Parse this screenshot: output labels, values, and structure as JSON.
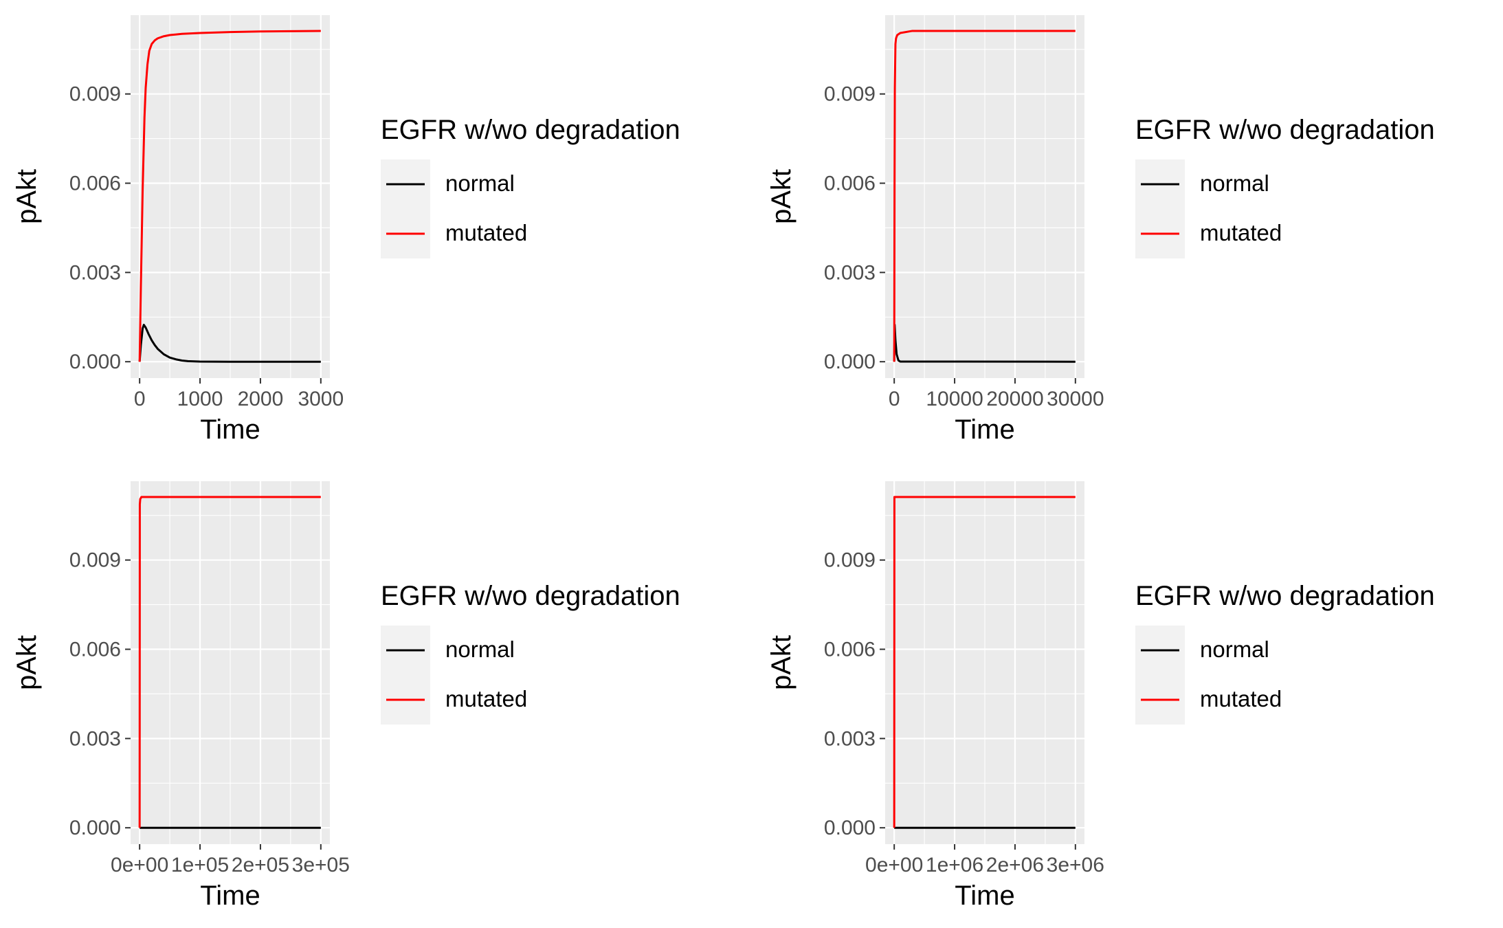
{
  "colors": {
    "panel_bg": "#EBEBEB",
    "grid": "#FFFFFF",
    "tick": "#333333",
    "tick_label": "#4D4D4D",
    "axis_title": "#000000",
    "legend_key_bg": "#F2F2F2"
  },
  "chart_data": [
    {
      "type": "line",
      "xlabel": "Time",
      "ylabel": "pAkt",
      "xlim": [
        -150,
        3150
      ],
      "ylim": [
        -0.00055,
        0.01165
      ],
      "x_ticks": [
        0,
        1000,
        2000,
        3000
      ],
      "x_tick_labels": [
        "0",
        "1000",
        "2000",
        "3000"
      ],
      "y_ticks": [
        0,
        0.003,
        0.006,
        0.009
      ],
      "y_tick_labels": [
        "0.000",
        "0.003",
        "0.006",
        "0.009"
      ],
      "legend": {
        "title": "EGFR w/wo degradation",
        "position": "right",
        "labels": [
          "normal",
          "mutated"
        ]
      },
      "series": [
        {
          "name": "normal",
          "color": "#000000",
          "x": [
            0,
            20,
            50,
            70,
            100,
            150,
            200,
            250,
            300,
            400,
            500,
            600,
            700,
            800,
            1000,
            1500,
            2000,
            2500,
            3000
          ],
          "y": [
            0,
            0.00055,
            0.00112,
            0.00124,
            0.00115,
            0.00092,
            0.00072,
            0.00056,
            0.00043,
            0.00025,
            0.00014,
            8e-05,
            4e-05,
            2e-05,
            5e-06,
            0,
            0,
            0,
            0
          ]
        },
        {
          "name": "mutated",
          "color": "#FF0000",
          "x": [
            0,
            20,
            50,
            80,
            100,
            130,
            160,
            200,
            250,
            300,
            400,
            500,
            700,
            1000,
            1500,
            2000,
            2500,
            3000
          ],
          "y": [
            0,
            0.0025,
            0.0058,
            0.0082,
            0.0092,
            0.01,
            0.01045,
            0.01068,
            0.0108,
            0.01087,
            0.01094,
            0.01098,
            0.01102,
            0.01105,
            0.01108,
            0.0111,
            0.01111,
            0.01112
          ]
        }
      ]
    },
    {
      "type": "line",
      "xlabel": "Time",
      "ylabel": "pAkt",
      "xlim": [
        -1500,
        31500
      ],
      "ylim": [
        -0.00055,
        0.01165
      ],
      "x_ticks": [
        0,
        10000,
        20000,
        30000
      ],
      "x_tick_labels": [
        "0",
        "10000",
        "20000",
        "30000"
      ],
      "y_ticks": [
        0,
        0.003,
        0.006,
        0.009
      ],
      "y_tick_labels": [
        "0.000",
        "0.003",
        "0.006",
        "0.009"
      ],
      "legend": {
        "title": "EGFR w/wo degradation",
        "position": "right",
        "labels": [
          "normal",
          "mutated"
        ]
      },
      "series": [
        {
          "name": "normal",
          "color": "#000000",
          "x": [
            0,
            70,
            200,
            400,
            700,
            1000,
            30000
          ],
          "y": [
            0,
            0.00124,
            0.00072,
            0.00025,
            4e-05,
            5e-06,
            0
          ]
        },
        {
          "name": "mutated",
          "color": "#FF0000",
          "x": [
            0,
            50,
            100,
            200,
            300,
            500,
            1000,
            3000,
            30000
          ],
          "y": [
            0,
            0.0058,
            0.0092,
            0.01068,
            0.01087,
            0.01098,
            0.01105,
            0.01112,
            0.01112
          ]
        }
      ]
    },
    {
      "type": "line",
      "xlabel": "Time",
      "ylabel": "pAkt",
      "xlim": [
        -15000,
        315000
      ],
      "ylim": [
        -0.00055,
        0.01165
      ],
      "x_ticks": [
        0,
        100000,
        200000,
        300000
      ],
      "x_tick_labels": [
        "0e+00",
        "1e+05",
        "2e+05",
        "3e+05"
      ],
      "y_ticks": [
        0,
        0.003,
        0.006,
        0.009
      ],
      "y_tick_labels": [
        "0.000",
        "0.003",
        "0.006",
        "0.009"
      ],
      "legend": {
        "title": "EGFR w/wo degradation",
        "position": "right",
        "labels": [
          "normal",
          "mutated"
        ]
      },
      "series": [
        {
          "name": "normal",
          "color": "#000000",
          "x": [
            0,
            300000
          ],
          "y": [
            0,
            0
          ]
        },
        {
          "name": "mutated",
          "color": "#FF0000",
          "x": [
            0,
            300,
            1000,
            3000,
            300000
          ],
          "y": [
            0,
            0.01087,
            0.01105,
            0.01112,
            0.01112
          ]
        }
      ]
    },
    {
      "type": "line",
      "xlabel": "Time",
      "ylabel": "pAkt",
      "xlim": [
        -150000,
        3150000
      ],
      "ylim": [
        -0.00055,
        0.01165
      ],
      "x_ticks": [
        0,
        1000000,
        2000000,
        3000000
      ],
      "x_tick_labels": [
        "0e+00",
        "1e+06",
        "2e+06",
        "3e+06"
      ],
      "y_ticks": [
        0,
        0.003,
        0.006,
        0.009
      ],
      "y_tick_labels": [
        "0.000",
        "0.003",
        "0.006",
        "0.009"
      ],
      "legend": {
        "title": "EGFR w/wo degradation",
        "position": "right",
        "labels": [
          "normal",
          "mutated"
        ]
      },
      "series": [
        {
          "name": "normal",
          "color": "#000000",
          "x": [
            0,
            3000000
          ],
          "y": [
            0,
            0
          ]
        },
        {
          "name": "mutated",
          "color": "#FF0000",
          "x": [
            0,
            3000,
            3000000
          ],
          "y": [
            0,
            0.01112,
            0.01112
          ]
        }
      ]
    }
  ]
}
